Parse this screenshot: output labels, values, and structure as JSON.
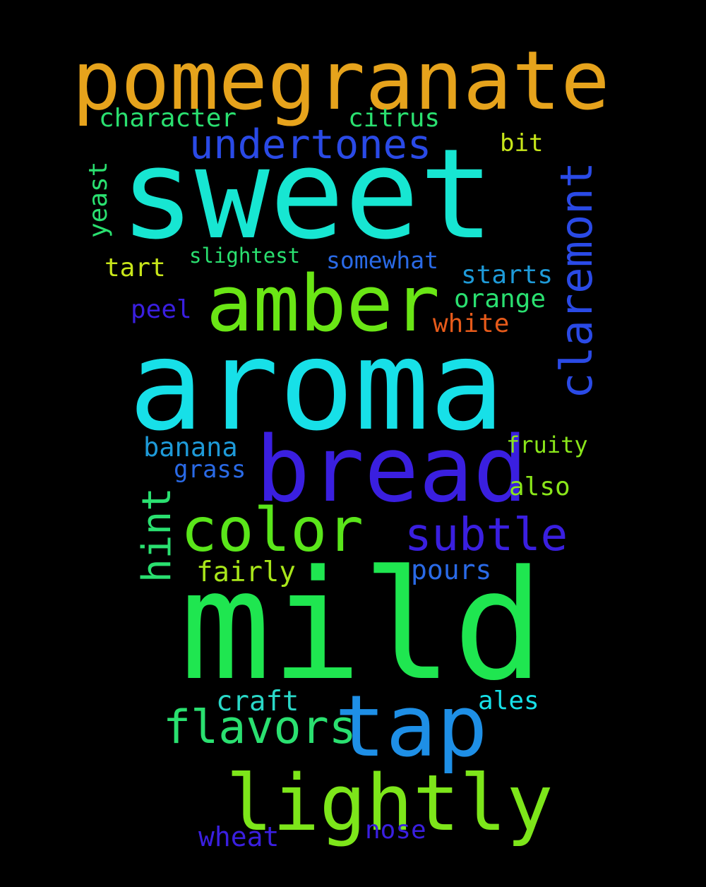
{
  "words": {
    "pomegranate": {
      "text": "pomegranate",
      "color": "#E6A31C"
    },
    "sweet": {
      "text": "sweet",
      "color": "#17E6D2"
    },
    "aroma": {
      "text": "aroma",
      "color": "#17E0E8"
    },
    "mild": {
      "text": "mild",
      "color": "#1FE650"
    },
    "amber": {
      "text": "amber",
      "color": "#6AE615"
    },
    "bread": {
      "text": "bread",
      "color": "#3A1FE0"
    },
    "tap": {
      "text": "tap",
      "color": "#1E8FE6"
    },
    "lightly": {
      "text": "lightly",
      "color": "#7DE61A"
    },
    "color": {
      "text": "color",
      "color": "#5AE61A"
    },
    "undertones": {
      "text": "undertones",
      "color": "#2A4AE6"
    },
    "claremont": {
      "text": "claremont",
      "color": "#2A4AE6"
    },
    "subtle": {
      "text": "subtle",
      "color": "#3A1FE0"
    },
    "flavors": {
      "text": "flavors",
      "color": "#2AE070"
    },
    "character": {
      "text": "character",
      "color": "#2AE070"
    },
    "citrus": {
      "text": "citrus",
      "color": "#2AE070"
    },
    "bit": {
      "text": "bit",
      "color": "#C8E61A"
    },
    "yeast": {
      "text": "yeast",
      "color": "#2AE070"
    },
    "slightest": {
      "text": "slightest",
      "color": "#2AE070"
    },
    "somewhat": {
      "text": "somewhat",
      "color": "#2A6AE6"
    },
    "tart": {
      "text": "tart",
      "color": "#C8E61A"
    },
    "starts": {
      "text": "starts",
      "color": "#1E9AD8"
    },
    "orange": {
      "text": "orange",
      "color": "#2AE070"
    },
    "peel": {
      "text": "peel",
      "color": "#3A1FE0"
    },
    "white": {
      "text": "white",
      "color": "#E65A1A"
    },
    "banana": {
      "text": "banana",
      "color": "#1E9AD8"
    },
    "fruity": {
      "text": "fruity",
      "color": "#8AE61A"
    },
    "grass": {
      "text": "grass",
      "color": "#2A6AE6"
    },
    "also": {
      "text": "also",
      "color": "#8AE61A"
    },
    "hint": {
      "text": "hint",
      "color": "#2AE070"
    },
    "fairly": {
      "text": "fairly",
      "color": "#A8E61A"
    },
    "pours": {
      "text": "pours",
      "color": "#2A6AE6"
    },
    "craft": {
      "text": "craft",
      "color": "#2AD8C8"
    },
    "ales": {
      "text": "ales",
      "color": "#17E0E8"
    },
    "wheat": {
      "text": "wheat",
      "color": "#3A1FE0"
    },
    "nose": {
      "text": "nose",
      "color": "#3A1FE0"
    }
  }
}
